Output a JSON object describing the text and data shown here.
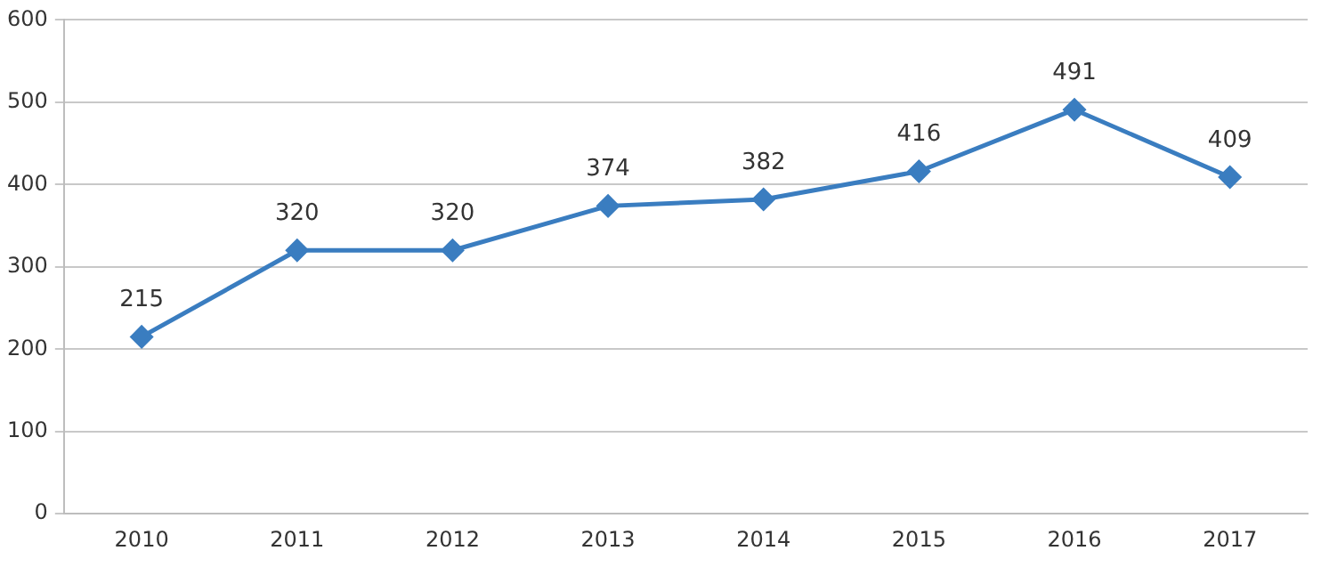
{
  "chart_data": {
    "type": "line",
    "categories": [
      "2010",
      "2011",
      "2012",
      "2013",
      "2014",
      "2015",
      "2016",
      "2017"
    ],
    "series": [
      {
        "color": "#3a7dc0",
        "values": [
          215,
          320,
          320,
          374,
          382,
          416,
          491,
          409
        ]
      }
    ],
    "ylim": [
      0,
      600
    ],
    "yticks": [
      0,
      100,
      200,
      300,
      400,
      500,
      600
    ],
    "grid": "y",
    "legend": false,
    "marker": "diamond",
    "line_style": "solid",
    "data_labels": true
  }
}
